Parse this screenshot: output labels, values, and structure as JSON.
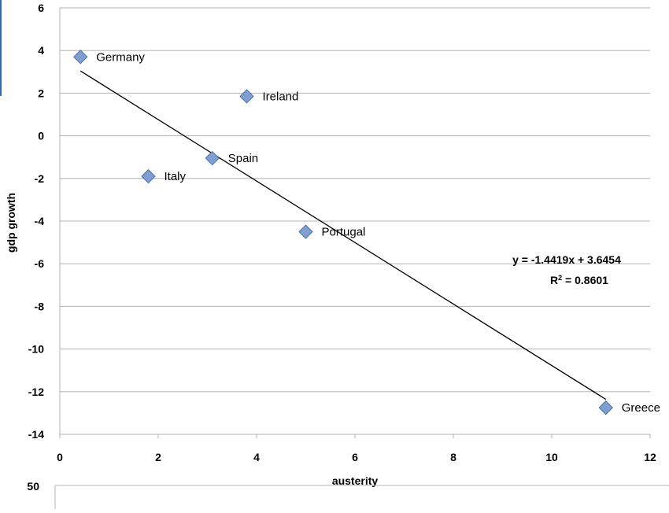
{
  "chart_data": {
    "type": "scatter",
    "xlabel": "austerity",
    "ylabel": "gdp growth",
    "xlim": [
      0,
      12
    ],
    "ylim": [
      -14,
      6
    ],
    "x_ticks": [
      "0",
      "2",
      "4",
      "6",
      "8",
      "10",
      "12"
    ],
    "y_ticks": [
      "6",
      "4",
      "2",
      "0",
      "-2",
      "-4",
      "-6",
      "-8",
      "-10",
      "-12",
      "-14"
    ],
    "grid": true,
    "marker": "diamond",
    "colors": {
      "marker_fill": "#7f9fd3",
      "marker_stroke": "#4a6fa5",
      "grid": "#b3b3b3",
      "trendline": "#000000",
      "frame_accent": "#2f6bb0"
    },
    "points": [
      {
        "label": "Germany",
        "x": 0.42,
        "y": 3.7
      },
      {
        "label": "Ireland",
        "x": 3.8,
        "y": 1.85
      },
      {
        "label": "Spain",
        "x": 3.1,
        "y": -1.05
      },
      {
        "label": "Italy",
        "x": 1.8,
        "y": -1.9
      },
      {
        "label": "Portugal",
        "x": 5.0,
        "y": -4.5
      },
      {
        "label": "Greece",
        "x": 11.1,
        "y": -12.75
      }
    ],
    "trendline": {
      "slope": -1.4419,
      "intercept": 3.6454,
      "x_range": [
        0.42,
        11.1
      ],
      "equation": "y = -1.4419x + 3.6454",
      "r2_prefix": "R",
      "r2_sup": "2",
      "r2_value": " = 0.8601"
    },
    "next_chart_tick": "50"
  }
}
